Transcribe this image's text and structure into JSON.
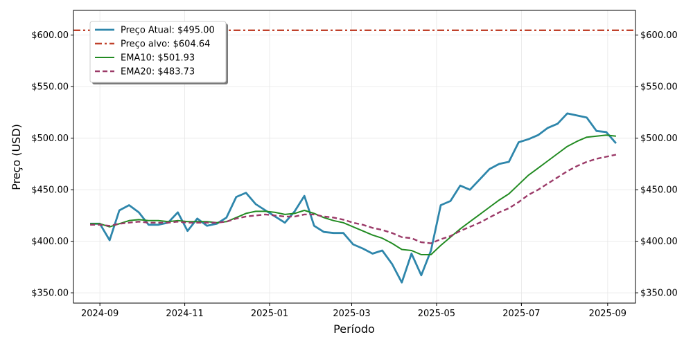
{
  "chart_data": {
    "type": "line",
    "title": "",
    "xlabel": "Período",
    "ylabel": "Preço (USD)",
    "ylim": [
      340,
      624
    ],
    "xlim": [
      "2024-08-13",
      "2025-09-21"
    ],
    "grid": true,
    "legend_position": "top-left",
    "y_ticks": [
      350,
      400,
      450,
      500,
      550,
      600
    ],
    "y_tick_labels": [
      "$350.00",
      "$400.00",
      "$450.00",
      "$500.00",
      "$550.00",
      "$600.00"
    ],
    "x_ticks": [
      "2024-09-01",
      "2024-11-01",
      "2025-01-01",
      "2025-03-01",
      "2025-05-01",
      "2025-07-01",
      "2025-09-01"
    ],
    "x_tick_labels": [
      "2024-09",
      "2024-11",
      "2025-01",
      "2025-03",
      "2025-05",
      "2025-07",
      "2025-09"
    ],
    "target_price": {
      "label": "Preço alvo: $604.64",
      "value": 604.64,
      "color": "#c0412b"
    },
    "series": [
      {
        "name": "Preço Atual: $495.00",
        "color": "#2e86ab",
        "style": "solid",
        "x": [
          "2024-08-25",
          "2024-09-01",
          "2024-09-08",
          "2024-09-15",
          "2024-09-22",
          "2024-09-29",
          "2024-10-06",
          "2024-10-13",
          "2024-10-20",
          "2024-10-27",
          "2024-11-03",
          "2024-11-10",
          "2024-11-17",
          "2024-11-24",
          "2024-12-01",
          "2024-12-08",
          "2024-12-15",
          "2024-12-22",
          "2024-12-29",
          "2025-01-05",
          "2025-01-12",
          "2025-01-19",
          "2025-01-26",
          "2025-02-02",
          "2025-02-09",
          "2025-02-16",
          "2025-02-23",
          "2025-03-02",
          "2025-03-09",
          "2025-03-16",
          "2025-03-23",
          "2025-03-30",
          "2025-04-06",
          "2025-04-13",
          "2025-04-20",
          "2025-04-27",
          "2025-05-04",
          "2025-05-11",
          "2025-05-18",
          "2025-05-25",
          "2025-06-01",
          "2025-06-08",
          "2025-06-15",
          "2025-06-22",
          "2025-06-29",
          "2025-07-06",
          "2025-07-13",
          "2025-07-20",
          "2025-07-27",
          "2025-08-03",
          "2025-08-10",
          "2025-08-17",
          "2025-08-24",
          "2025-08-31",
          "2025-09-07"
        ],
        "values": [
          417,
          417,
          401,
          430,
          435,
          428,
          416,
          416,
          418,
          428,
          410,
          422,
          415,
          417,
          423,
          443,
          447,
          436,
          430,
          424,
          418,
          429,
          444,
          415,
          409,
          408,
          408,
          397,
          393,
          388,
          391,
          378,
          360,
          388,
          367,
          391,
          435,
          439,
          454,
          450,
          460,
          470,
          475,
          477,
          496,
          499,
          503,
          510,
          514,
          524,
          522,
          520,
          507,
          506,
          495
        ]
      },
      {
        "name": "Preço alvo: $604.64",
        "color": "#c0412b",
        "style": "dashdot",
        "constant": 604.64
      },
      {
        "name": "EMA10: $501.93",
        "color": "#228b22",
        "style": "solid",
        "x": [
          "2024-08-25",
          "2024-09-01",
          "2024-09-08",
          "2024-09-15",
          "2024-09-22",
          "2024-09-29",
          "2024-10-06",
          "2024-10-13",
          "2024-10-20",
          "2024-10-27",
          "2024-11-03",
          "2024-11-10",
          "2024-11-17",
          "2024-11-24",
          "2024-12-01",
          "2024-12-08",
          "2024-12-15",
          "2024-12-22",
          "2024-12-29",
          "2025-01-05",
          "2025-01-12",
          "2025-01-19",
          "2025-01-26",
          "2025-02-02",
          "2025-02-09",
          "2025-02-16",
          "2025-02-23",
          "2025-03-02",
          "2025-03-09",
          "2025-03-16",
          "2025-03-23",
          "2025-03-30",
          "2025-04-06",
          "2025-04-13",
          "2025-04-20",
          "2025-04-27",
          "2025-05-04",
          "2025-05-11",
          "2025-05-18",
          "2025-05-25",
          "2025-06-01",
          "2025-06-08",
          "2025-06-15",
          "2025-06-22",
          "2025-06-29",
          "2025-07-06",
          "2025-07-13",
          "2025-07-20",
          "2025-07-27",
          "2025-08-03",
          "2025-08-10",
          "2025-08-17",
          "2025-08-24",
          "2025-08-31",
          "2025-09-07"
        ],
        "values": [
          417,
          417,
          414,
          417,
          420,
          421,
          420,
          420,
          419,
          420,
          419,
          419,
          419,
          418,
          419,
          423,
          427,
          429,
          429,
          428,
          426,
          427,
          430,
          427,
          423,
          420,
          418,
          414,
          410,
          406,
          403,
          398,
          392,
          391,
          387,
          387,
          396,
          404,
          412,
          419,
          426,
          433,
          440,
          446,
          455,
          464,
          471,
          478,
          485,
          492,
          497,
          501,
          502,
          503,
          502
        ]
      },
      {
        "name": "EMA20: $483.73",
        "color": "#9b3a68",
        "style": "dashed",
        "x": [
          "2024-08-25",
          "2024-09-01",
          "2024-09-08",
          "2024-09-15",
          "2024-09-22",
          "2024-09-29",
          "2024-10-06",
          "2024-10-13",
          "2024-10-20",
          "2024-10-27",
          "2024-11-03",
          "2024-11-10",
          "2024-11-17",
          "2024-11-24",
          "2024-12-01",
          "2024-12-08",
          "2024-12-15",
          "2024-12-22",
          "2024-12-29",
          "2025-01-05",
          "2025-01-12",
          "2025-01-19",
          "2025-01-26",
          "2025-02-02",
          "2025-02-09",
          "2025-02-16",
          "2025-02-23",
          "2025-03-02",
          "2025-03-09",
          "2025-03-16",
          "2025-03-23",
          "2025-03-30",
          "2025-04-06",
          "2025-04-13",
          "2025-04-20",
          "2025-04-27",
          "2025-05-04",
          "2025-05-11",
          "2025-05-18",
          "2025-05-25",
          "2025-06-01",
          "2025-06-08",
          "2025-06-15",
          "2025-06-22",
          "2025-06-29",
          "2025-07-06",
          "2025-07-13",
          "2025-07-20",
          "2025-07-27",
          "2025-08-03",
          "2025-08-10",
          "2025-08-17",
          "2025-08-24",
          "2025-08-31",
          "2025-09-07"
        ],
        "values": [
          416,
          416,
          415,
          417,
          418,
          419,
          418,
          418,
          418,
          419,
          418,
          418,
          418,
          418,
          419,
          422,
          424,
          425,
          426,
          425,
          424,
          424,
          426,
          426,
          424,
          423,
          421,
          418,
          416,
          413,
          411,
          408,
          404,
          403,
          399,
          398,
          402,
          405,
          410,
          414,
          418,
          423,
          428,
          432,
          438,
          445,
          450,
          456,
          462,
          468,
          473,
          477,
          480,
          482,
          484
        ]
      }
    ]
  }
}
